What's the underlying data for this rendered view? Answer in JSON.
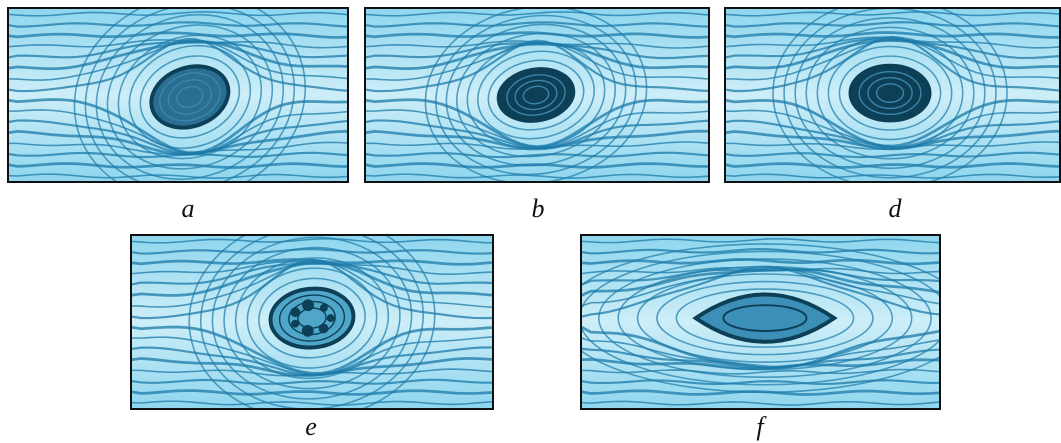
{
  "figure": {
    "panels": [
      {
        "id": "a",
        "label": "a",
        "knot": "oval-tilted"
      },
      {
        "id": "b",
        "label": "b",
        "knot": "dark-oval"
      },
      {
        "id": "d",
        "label": "d",
        "knot": "round-dark"
      },
      {
        "id": "e",
        "label": "e",
        "knot": "rotten-round"
      },
      {
        "id": "f",
        "label": "f",
        "knot": "spindle"
      }
    ],
    "colors": {
      "wood_light": "#8fd6ee",
      "wood_pale": "#cdeef8",
      "grain_dark": "#1c7aa8",
      "knot_dark": "#0d3f57",
      "border": "#101010"
    }
  }
}
